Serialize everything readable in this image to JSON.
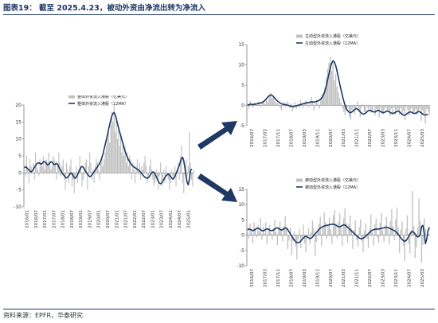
{
  "header": {
    "title": "图表19：  截至 2025.4.23，被动外资由净流出转为净流入"
  },
  "footer": {
    "source": "资料来源：EPFR，华泰研究"
  },
  "colors": {
    "bars": "#bfbfbf",
    "line": "#1f3864",
    "axis": "#555555"
  },
  "chart_data": [
    {
      "type": "bar",
      "name": "total",
      "legend": [
        "整体外资流入港股（亿美元）",
        "整体外资流入港股（12MA）"
      ],
      "ylim": [
        -10,
        20
      ],
      "yticks": [
        -10,
        -5,
        0,
        5,
        10,
        15,
        20
      ],
      "xticks": [
        "2016/01",
        "2016/07",
        "2017/01",
        "2017/07",
        "2018/01",
        "2018/07",
        "2019/01",
        "2019/07",
        "2020/01",
        "2020/07",
        "2021/01",
        "2021/07",
        "2022/01",
        "2022/07",
        "2023/01",
        "2023/07",
        "2024/01",
        "2024/07",
        "2025/01"
      ],
      "series": [
        {
          "name": "整体外资流入港股（亿美元）",
          "kind": "bar",
          "values": [
            2,
            -1,
            5,
            1,
            -3,
            4,
            2,
            0,
            3,
            -2,
            6,
            2,
            1,
            -1,
            4,
            3,
            2,
            5,
            1,
            3,
            4,
            2,
            6,
            3,
            1,
            2,
            5,
            4,
            3,
            -2,
            2,
            6,
            3,
            -1,
            2,
            4,
            -2,
            -5,
            3,
            1,
            -3,
            2,
            4,
            -4,
            -2,
            -6,
            -1,
            2,
            -3,
            1,
            5,
            2,
            -4,
            -2,
            1,
            3,
            4,
            -5,
            2,
            6,
            3,
            -2,
            1,
            -3,
            2,
            4,
            3,
            1,
            -2,
            3,
            5,
            2,
            4,
            6,
            8,
            10,
            12,
            9,
            14,
            18,
            15,
            20,
            12,
            16,
            10,
            14,
            8,
            11,
            6,
            9,
            5,
            8,
            3,
            6,
            2,
            5,
            4,
            -2,
            3,
            1,
            -3,
            2,
            4,
            1,
            3,
            -2,
            2,
            1,
            3,
            5,
            2,
            -3,
            -1,
            2,
            4,
            1,
            -2,
            -4,
            -3,
            1,
            -2,
            -5,
            -1,
            3,
            -4,
            -2,
            1,
            -3,
            2,
            -1,
            -2,
            -5,
            -3,
            1,
            -1,
            -2,
            2,
            -4,
            1,
            3,
            -2,
            5,
            8,
            -3,
            -6,
            2,
            4,
            -1,
            2,
            12,
            3,
            -2,
            -4,
            1
          ],
          "x_start": "2016/01"
        },
        {
          "name": "整体外资流入港股（12MA）",
          "kind": "line",
          "values": [
            1.5,
            1.8,
            1.6,
            1.2,
            0.9,
            0.5,
            0.3,
            0.6,
            1.0,
            1.6,
            2.2,
            2.6,
            2.9,
            3.0,
            2.8,
            2.6,
            2.8,
            3.2,
            3.4,
            3.1,
            2.7,
            2.3,
            2.6,
            3.0,
            3.3,
            3.1,
            2.7,
            2.4,
            2.6,
            2.8,
            2.5,
            1.8,
            1.2,
            0.6,
            0.0,
            -0.5,
            -0.8,
            -1.2,
            -1.5,
            -1.3,
            -0.9,
            -0.4,
            0.0,
            -0.3,
            -0.8,
            -1.3,
            -1.6,
            -1.1,
            -0.6,
            0.2,
            1.0,
            1.6,
            1.9,
            1.7,
            1.2,
            0.6,
            0.1,
            -0.4,
            -0.8,
            -1.1,
            -1.0,
            -0.6,
            -0.1,
            0.4,
            0.9,
            1.3,
            1.8,
            2.3,
            2.9,
            3.6,
            4.5,
            5.6,
            7.0,
            8.4,
            9.8,
            11.2,
            12.8,
            14.2,
            15.6,
            16.8,
            17.5,
            17.8,
            17.2,
            16.0,
            14.6,
            13.3,
            12.1,
            11.0,
            9.8,
            8.6,
            7.4,
            6.3,
            5.4,
            4.6,
            3.9,
            3.3,
            2.8,
            2.4,
            2.0,
            1.7,
            1.5,
            1.3,
            1.1,
            0.9,
            0.6,
            0.2,
            -0.2,
            -0.6,
            -1.0,
            -1.3,
            -1.5,
            -1.6,
            -1.4,
            -1.0,
            -0.5,
            0.0,
            0.3,
            0.2,
            -0.3,
            -1.0,
            -1.8,
            -2.5,
            -3.0,
            -3.2,
            -3.0,
            -2.5,
            -1.9,
            -1.3,
            -0.8,
            -0.5,
            -0.4,
            -0.6,
            -1.0,
            -1.5,
            -1.8,
            -1.6,
            -1.0,
            -0.2,
            0.6,
            1.4,
            2.3,
            3.4,
            4.3,
            4.6,
            3.5,
            1.5,
            -0.8,
            -2.8,
            -3.5,
            -2.0,
            0.5,
            1.2
          ]
        }
      ]
    },
    {
      "type": "bar",
      "name": "active",
      "legend": [
        "主动型外资流入港股（亿美元）",
        "主动型外资流入港股（12MA）"
      ],
      "ylim": [
        -5,
        15
      ],
      "yticks": [
        -5,
        0,
        5,
        10,
        15
      ],
      "xticks": [
        "2016/07",
        "2017/03",
        "2017/11",
        "2018/07",
        "2019/03",
        "2019/11",
        "2020/07",
        "2021/03",
        "2021/11",
        "2022/07",
        "2023/03",
        "2023/11",
        "2024/07",
        "2025/03"
      ],
      "series": [
        {
          "name": "主动型外资流入港股（亿美元）",
          "kind": "bar",
          "values": [
            0.5,
            -0.8,
            1.2,
            0.4,
            -0.6,
            0.8,
            0.3,
            -0.2,
            1.0,
            0.6,
            -0.4,
            0.7,
            0.9,
            0.4,
            1.4,
            0.8,
            2.5,
            3.0,
            1.8,
            2.2,
            1.1,
            0.7,
            0.5,
            0.3,
            -0.6,
            -1.2,
            0.4,
            0.9,
            -0.5,
            1.0,
            0.6,
            -0.7,
            0.5,
            -1.5,
            -0.3,
            0.8,
            -0.9,
            0.4,
            -0.6,
            1.3,
            0.6,
            -0.5,
            0.7,
            1.2,
            0.8,
            -0.4,
            0.9,
            2.1,
            1.0,
            -1.2,
            0.6,
            1.4,
            0.5,
            -0.8,
            1.6,
            2.8,
            3.2,
            4.5,
            6.8,
            9.0,
            10.5,
            12.0,
            8.5,
            10.6,
            6.2,
            7.8,
            4.6,
            3.2,
            1.8,
            0.6,
            -0.8,
            -1.6,
            -2.5,
            -1.0,
            -0.4,
            -2.8,
            -3.6,
            -1.2,
            -0.6,
            -2.2,
            -0.8,
            1.0,
            -1.5,
            -2.8,
            -0.6,
            0.4,
            -1.6,
            -2.0,
            -0.3,
            -1.0,
            -0.5,
            -1.8,
            -1.2,
            -0.2,
            -2.5,
            -0.9,
            -1.4,
            -3.0,
            -0.6,
            -1.6,
            -2.2,
            -1.0,
            -0.5,
            -1.5,
            -1.2,
            -2.6,
            -0.8,
            -1.9,
            -0.6,
            -2.4,
            -1.0,
            -1.6,
            -2.3,
            -0.6,
            -2.0,
            -1.3,
            -3.6,
            -0.4,
            -1.2,
            -2.5,
            -1.1,
            -0.7,
            -2.0,
            -1.6,
            -0.9,
            -2.4,
            -1.3,
            -0.8,
            -3.8,
            -1.2,
            -2.0,
            -4.5,
            -0.9,
            -1.5,
            -2.2
          ],
          "x_start": "2016/07"
        },
        {
          "name": "主动型外资流入港股（12MA）",
          "kind": "line",
          "values": [
            0.2,
            0.1,
            0.3,
            0.3,
            0.2,
            0.3,
            0.3,
            0.4,
            0.5,
            0.6,
            0.6,
            0.8,
            1.0,
            1.3,
            1.7,
            2.1,
            2.4,
            2.6,
            2.5,
            2.2,
            1.8,
            1.4,
            1.1,
            0.8,
            0.6,
            0.4,
            0.3,
            0.2,
            0.2,
            0.1,
            0.0,
            -0.1,
            -0.2,
            -0.3,
            -0.3,
            -0.2,
            -0.1,
            0.0,
            0.1,
            0.2,
            0.3,
            0.4,
            0.5,
            0.6,
            0.7,
            0.7,
            0.8,
            0.9,
            0.9,
            0.8,
            0.9,
            1.0,
            1.1,
            1.3,
            1.6,
            2.0,
            2.6,
            3.5,
            4.8,
            6.3,
            7.8,
            9.3,
            10.4,
            11.0,
            10.7,
            9.8,
            8.4,
            6.8,
            5.2,
            3.7,
            2.3,
            1.0,
            -0.1,
            -0.9,
            -1.4,
            -1.7,
            -1.8,
            -1.6,
            -1.3,
            -1.0,
            -0.8,
            -0.9,
            -1.2,
            -1.6,
            -1.9,
            -2.1,
            -2.1,
            -1.9,
            -1.6,
            -1.3,
            -1.2,
            -1.3,
            -1.5,
            -1.6,
            -1.6,
            -1.4,
            -1.2,
            -1.3,
            -1.5,
            -1.7,
            -1.8,
            -1.7,
            -1.5,
            -1.4,
            -1.5,
            -1.7,
            -1.9,
            -2.0,
            -1.9,
            -1.7,
            -1.5,
            -1.4,
            -1.6,
            -1.9,
            -2.2,
            -2.4,
            -2.4,
            -2.2,
            -1.9,
            -1.7,
            -1.6,
            -1.7,
            -1.9,
            -2.0,
            -1.9,
            -1.7,
            -1.5,
            -1.6,
            -1.8,
            -2.1,
            -2.3,
            -2.4,
            -2.3,
            -2.2
          ]
        }
      ]
    },
    {
      "type": "bar",
      "name": "passive",
      "legend": [
        "被动型外资流入港股（亿美元）",
        "被动型外资流入港股（12MA）"
      ],
      "ylim": [
        -10,
        15
      ],
      "yticks": [
        -10,
        -5,
        0,
        5,
        10,
        15
      ],
      "xticks": [
        "2016/07",
        "2017/03",
        "2017/11",
        "2018/07",
        "2019/03",
        "2019/11",
        "2020/07",
        "2021/03",
        "2021/11",
        "2022/07",
        "2023/03",
        "2023/11",
        "2024/07",
        "2025/03"
      ],
      "series": [
        {
          "name": "被动型外资流入港股（亿美元）",
          "kind": "bar",
          "values": [
            2.5,
            -1.2,
            3.8,
            1.5,
            -2.6,
            4.2,
            2.0,
            -0.8,
            3.4,
            1.2,
            5.6,
            -1.5,
            2.8,
            0.6,
            4.1,
            -2.8,
            1.6,
            3.2,
            0.8,
            -1.4,
            2.2,
            5.0,
            1.0,
            -3.2,
            2.6,
            4.5,
            1.8,
            -2.0,
            3.0,
            6.2,
            2.4,
            -4.6,
            -1.8,
            2.5,
            -6.5,
            -2.0,
            1.2,
            -3.8,
            -8.0,
            -1.5,
            2.0,
            -4.2,
            -1.0,
            3.5,
            -2.6,
            -5.5,
            -0.8,
            2.2,
            -3.0,
            1.0,
            4.8,
            2.4,
            -6.8,
            -2.2,
            1.5,
            3.8,
            6.0,
            -3.5,
            2.5,
            7.5,
            4.2,
            -1.2,
            3.0,
            5.8,
            2.0,
            -2.8,
            6.5,
            8.2,
            3.6,
            -1.0,
            4.4,
            7.0,
            2.5,
            -3.6,
            5.5,
            8.8,
            4.0,
            -2.4,
            3.6,
            6.4,
            2.2,
            -4.5,
            1.8,
            4.8,
            -1.5,
            -3.8,
            2.6,
            5.2,
            -2.0,
            -5.6,
            1.4,
            3.8,
            -1.2,
            -4.2,
            2.2,
            6.8,
            1.0,
            -3.4,
            3.5,
            5.5,
            -0.8,
            -2.6,
            4.0,
            7.2,
            1.5,
            -2.2,
            3.2,
            6.0,
            2.0,
            -3.0,
            4.6,
            8.5,
            3.0,
            -1.6,
            5.2,
            9.0,
            2.6,
            -5.8,
            1.8,
            4.4,
            -3.5,
            -8.5,
            2.2,
            6.5,
            -2.8,
            -6.0,
            1.6,
            14.5,
            3.0,
            -7.5,
            -4.0,
            2.5,
            12.0,
            4.5,
            -9.0,
            -3.2,
            5.5,
            2.0
          ],
          "x_start": "2016/07"
        },
        {
          "name": "被动型外资流入港股（12MA）",
          "kind": "line",
          "values": [
            1.8,
            2.0,
            1.9,
            1.7,
            1.5,
            1.6,
            1.9,
            2.2,
            2.3,
            2.1,
            1.8,
            1.5,
            1.4,
            1.6,
            1.9,
            2.1,
            2.0,
            1.7,
            1.5,
            1.5,
            1.7,
            2.0,
            2.3,
            2.4,
            2.2,
            1.9,
            1.7,
            1.8,
            2.1,
            2.4,
            2.3,
            1.8,
            1.1,
            0.4,
            -0.3,
            -1.0,
            -1.6,
            -2.1,
            -2.4,
            -2.5,
            -2.3,
            -1.9,
            -1.4,
            -0.9,
            -0.5,
            -0.4,
            -0.6,
            -0.9,
            -1.1,
            -1.0,
            -0.6,
            -0.1,
            0.4,
            0.9,
            1.4,
            1.9,
            2.3,
            2.6,
            2.8,
            3.0,
            3.1,
            3.2,
            3.3,
            3.4,
            3.5,
            3.6,
            3.6,
            3.5,
            3.3,
            3.0,
            2.8,
            2.7,
            2.9,
            3.2,
            3.4,
            3.3,
            3.0,
            2.6,
            2.2,
            1.8,
            1.4,
            1.0,
            0.6,
            0.2,
            -0.2,
            -0.6,
            -0.9,
            -1.1,
            -1.2,
            -1.0,
            -0.7,
            -0.3,
            0.1,
            0.5,
            0.9,
            1.3,
            1.6,
            1.8,
            1.9,
            2.0,
            2.0,
            2.0,
            2.1,
            2.2,
            2.3,
            2.4,
            2.5,
            2.6,
            2.5,
            2.3,
            2.1,
            1.9,
            1.7,
            1.5,
            1.2,
            0.8,
            0.3,
            -0.3,
            -0.9,
            -1.4,
            -1.8,
            -2.0,
            -1.8,
            -1.2,
            -0.4,
            0.4,
            1.0,
            1.2,
            0.9,
            0.4,
            -0.2,
            -0.6,
            -0.4,
            0.2,
            2.8,
            3.2,
            0.6,
            -2.8,
            -1.2,
            1.5,
            2.6
          ]
        }
      ]
    }
  ]
}
